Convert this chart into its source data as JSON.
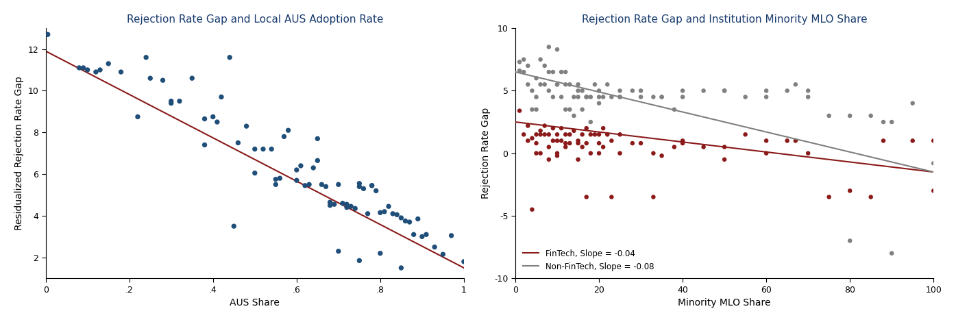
{
  "chart1": {
    "title": "Rejection Rate Gap and Local AUS Adoption Rate",
    "xlabel": "AUS Share",
    "ylabel": "Residualized Rejection Rate Gap",
    "xlim": [
      0,
      1
    ],
    "ylim": [
      1,
      13
    ],
    "xticks": [
      0,
      0.2,
      0.4,
      0.6,
      0.8,
      1.0
    ],
    "xtick_labels": [
      "0",
      ".2",
      ".4",
      ".6",
      ".8",
      "1"
    ],
    "yticks": [
      2,
      4,
      6,
      8,
      10,
      12
    ],
    "dot_color": "#1F4E79",
    "line_color": "#8B1A1A",
    "scatter_x": [
      0.005,
      0.08,
      0.09,
      0.12,
      0.15,
      0.22,
      0.24,
      0.28,
      0.3,
      0.32,
      0.35,
      0.38,
      0.4,
      0.42,
      0.44,
      0.46,
      0.48,
      0.5,
      0.52,
      0.54,
      0.55,
      0.56,
      0.57,
      0.58,
      0.6,
      0.61,
      0.62,
      0.63,
      0.64,
      0.65,
      0.66,
      0.67,
      0.68,
      0.69,
      0.7,
      0.71,
      0.72,
      0.73,
      0.74,
      0.75,
      0.76,
      0.77,
      0.78,
      0.79,
      0.8,
      0.81,
      0.82,
      0.83,
      0.84,
      0.85,
      0.86,
      0.87,
      0.88,
      0.89,
      0.9,
      0.91,
      0.93,
      0.95,
      0.97,
      1.0,
      0.1,
      0.13,
      0.18,
      0.25,
      0.3,
      0.38,
      0.41,
      0.45,
      0.5,
      0.55,
      0.6,
      0.65,
      0.7,
      0.75,
      0.8,
      0.85,
      0.68,
      0.72,
      0.75,
      0.78
    ],
    "scatter_y": [
      12.7,
      11.1,
      11.1,
      10.9,
      11.3,
      8.75,
      11.6,
      10.5,
      9.4,
      9.5,
      10.6,
      8.65,
      8.75,
      9.7,
      11.6,
      7.5,
      8.3,
      6.05,
      7.2,
      7.2,
      5.75,
      5.8,
      7.8,
      8.1,
      5.7,
      6.4,
      5.45,
      5.5,
      6.3,
      6.65,
      5.5,
      5.4,
      4.65,
      4.55,
      5.5,
      4.6,
      4.55,
      4.45,
      4.35,
      5.4,
      5.3,
      4.1,
      5.45,
      5.2,
      4.15,
      4.2,
      4.45,
      4.1,
      4.05,
      3.9,
      3.75,
      3.7,
      3.1,
      3.85,
      3.0,
      3.1,
      2.5,
      2.15,
      3.05,
      1.8,
      11.0,
      11.0,
      10.9,
      10.6,
      9.5,
      7.4,
      8.5,
      3.5,
      7.2,
      5.5,
      6.2,
      7.7,
      2.3,
      1.85,
      2.2,
      1.5,
      4.5,
      4.4,
      5.55,
      5.45
    ],
    "line_x0": 0,
    "line_x1": 1,
    "line_y0": 11.9,
    "line_y1": 1.5
  },
  "chart2": {
    "title": "Rejection Rate Gap and Institution Minority MLO Share",
    "xlabel": "Minority MLO Share",
    "ylabel": "Rejection Rate Gap",
    "xlim": [
      0,
      100
    ],
    "ylim": [
      -10,
      10
    ],
    "xticks": [
      0,
      20,
      40,
      60,
      80,
      100
    ],
    "yticks": [
      -10,
      -5,
      0,
      5,
      10
    ],
    "fintech_color": "#8B1A1A",
    "nonfintech_color": "#808080",
    "fintech_line_color": "#8B1A1A",
    "nonfintech_line_color": "#808080",
    "legend_fintech": "FinTech, Slope = -0.04",
    "legend_nonfintech": "Non-FinTech, Slope = -0.08",
    "fintech_x": [
      1,
      2,
      3,
      3,
      4,
      5,
      5,
      6,
      6,
      7,
      7,
      8,
      8,
      9,
      9,
      10,
      10,
      10,
      11,
      11,
      12,
      12,
      13,
      13,
      14,
      15,
      15,
      16,
      16,
      17,
      17,
      18,
      18,
      19,
      20,
      20,
      21,
      21,
      22,
      23,
      25,
      25,
      28,
      30,
      33,
      35,
      38,
      40,
      45,
      50,
      55,
      60,
      65,
      67,
      70,
      75,
      80,
      85,
      88,
      95,
      100,
      4,
      5,
      6,
      8,
      10,
      12,
      15,
      17,
      20,
      23,
      33,
      40,
      50,
      60,
      100
    ],
    "fintech_y": [
      3.4,
      1.5,
      2.2,
      1.0,
      1.2,
      1.5,
      0.8,
      1.8,
      0.0,
      2.2,
      1.5,
      1.5,
      0.5,
      2.0,
      1.0,
      1.5,
      1.0,
      0.0,
      2.0,
      1.0,
      1.5,
      0.5,
      1.5,
      0.8,
      1.8,
      1.0,
      0.8,
      1.5,
      0.5,
      2.0,
      0.8,
      1.5,
      0.0,
      1.5,
      1.5,
      0.8,
      2.0,
      0.5,
      1.5,
      1.0,
      1.5,
      0.0,
      0.8,
      0.8,
      0.0,
      -0.2,
      0.5,
      0.8,
      0.5,
      0.5,
      1.5,
      0.0,
      1.0,
      1.0,
      0.0,
      -3.5,
      -3.0,
      -3.5,
      1.0,
      1.0,
      -3.0,
      -4.5,
      0.0,
      1.5,
      -0.5,
      -0.2,
      0.8,
      -0.5,
      -3.5,
      0.0,
      -3.5,
      -3.5,
      1.0,
      -0.5,
      1.0,
      1.0
    ],
    "nonfintech_x": [
      1,
      1,
      2,
      2,
      3,
      3,
      4,
      4,
      5,
      5,
      6,
      6,
      7,
      7,
      8,
      8,
      9,
      9,
      10,
      10,
      11,
      11,
      12,
      12,
      13,
      13,
      14,
      14,
      15,
      15,
      16,
      16,
      17,
      17,
      18,
      18,
      19,
      20,
      20,
      21,
      22,
      23,
      25,
      25,
      28,
      30,
      33,
      35,
      38,
      40,
      45,
      50,
      55,
      60,
      65,
      67,
      70,
      75,
      80,
      85,
      88,
      90,
      95,
      100,
      5,
      8,
      10,
      12,
      15,
      17,
      20,
      25,
      30,
      35,
      40,
      50,
      60,
      70,
      80,
      90
    ],
    "nonfintech_y": [
      6.6,
      7.3,
      7.5,
      6.5,
      7.0,
      5.5,
      5.0,
      3.5,
      6.0,
      4.5,
      7.5,
      5.5,
      7.0,
      5.5,
      8.5,
      5.0,
      6.5,
      4.5,
      8.3,
      5.5,
      6.5,
      4.5,
      6.5,
      3.5,
      5.5,
      3.5,
      4.5,
      3.0,
      5.5,
      4.5,
      5.0,
      3.5,
      4.5,
      4.5,
      4.5,
      2.5,
      5.5,
      5.0,
      4.0,
      4.5,
      5.5,
      4.5,
      5.0,
      4.5,
      5.0,
      4.5,
      4.5,
      4.5,
      3.5,
      4.5,
      5.0,
      5.0,
      4.5,
      4.5,
      5.0,
      5.5,
      4.5,
      3.0,
      3.0,
      3.0,
      2.5,
      2.5,
      4.0,
      -0.8,
      3.5,
      6.5,
      5.5,
      5.5,
      5.0,
      4.5,
      4.5,
      4.5,
      5.0,
      4.5,
      5.0,
      5.0,
      5.0,
      5.0,
      -7.0,
      -8.0
    ],
    "fintech_line_x0": 0,
    "fintech_line_x1": 100,
    "fintech_line_y0": 2.5,
    "fintech_line_y1": -1.5,
    "nonfintech_line_x0": 0,
    "nonfintech_line_x1": 100,
    "nonfintech_line_y0": 6.5,
    "nonfintech_line_y1": -1.5
  },
  "background_color": "#ffffff",
  "title_fontsize": 11,
  "label_fontsize": 10,
  "tick_fontsize": 9
}
